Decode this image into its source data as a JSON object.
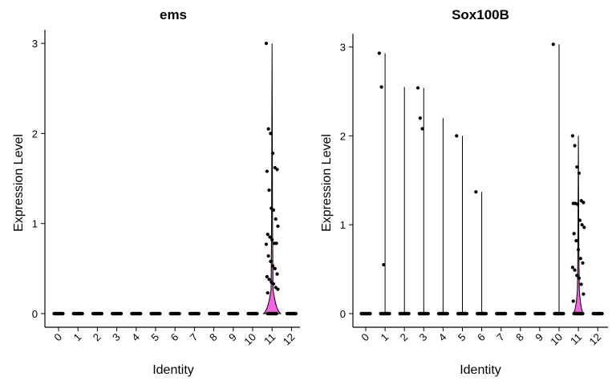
{
  "chart_data": [
    {
      "type": "violin",
      "title": "ems",
      "xlabel": "Identity",
      "ylabel": "Expression Level",
      "categories": [
        "0",
        "1",
        "2",
        "3",
        "4",
        "5",
        "6",
        "7",
        "8",
        "9",
        "10",
        "11",
        "12"
      ],
      "ylim": [
        0,
        3.15
      ],
      "yticks": [
        0,
        1,
        2,
        3
      ],
      "fill_color": "#F564E3",
      "violin_max": [
        0,
        0,
        0,
        0,
        0,
        0,
        0,
        0,
        0,
        0,
        0,
        3.0,
        0
      ],
      "violin_width_at_zero": [
        0,
        0,
        0,
        0,
        0,
        0,
        0,
        0,
        0,
        0,
        0,
        0.2,
        0
      ],
      "points": [
        {
          "cat": 11,
          "values": [
            3.0,
            2.05,
            2.0,
            1.78,
            1.62,
            1.6,
            1.58,
            1.37,
            1.17,
            1.15,
            1.05,
            0.97,
            0.88,
            0.85,
            0.82,
            0.78,
            0.78,
            0.77,
            0.64,
            0.58,
            0.53,
            0.5,
            0.44,
            0.41,
            0.38,
            0.35,
            0.33,
            0.29,
            0.27,
            0.23
          ]
        }
      ]
    },
    {
      "type": "violin",
      "title": "Sox100B",
      "xlabel": "Identity",
      "ylabel": "Expression Level",
      "categories": [
        "0",
        "1",
        "2",
        "3",
        "4",
        "5",
        "6",
        "7",
        "8",
        "9",
        "10",
        "11",
        "12"
      ],
      "ylim": [
        0,
        3.15
      ],
      "yticks": [
        0,
        1,
        2,
        3
      ],
      "fill_color": "#F564E3",
      "violin_max": [
        0,
        2.93,
        2.55,
        2.54,
        2.2,
        2.0,
        1.37,
        0,
        0,
        0,
        3.03,
        2.0,
        0
      ],
      "violin_width_at_zero": [
        0,
        0,
        0,
        0,
        0,
        0,
        0,
        0,
        0,
        0,
        0,
        0.12,
        0
      ],
      "points": [
        {
          "cat": 1,
          "values": [
            2.93,
            2.55,
            0.55
          ]
        },
        {
          "cat": 3,
          "values": [
            2.54,
            2.2,
            2.08
          ]
        },
        {
          "cat": 5,
          "values": [
            2.0
          ]
        },
        {
          "cat": 6,
          "values": [
            1.37
          ]
        },
        {
          "cat": 10,
          "values": [
            3.03
          ]
        },
        {
          "cat": 11,
          "values": [
            2.0,
            1.89,
            1.65,
            1.58,
            1.27,
            1.25,
            1.24,
            1.24,
            1.23,
            1.05,
            1.0,
            0.97,
            0.9,
            0.82,
            0.72,
            0.62,
            0.57,
            0.52,
            0.49,
            0.43,
            0.4,
            0.33,
            0.22,
            0.14
          ]
        }
      ]
    }
  ]
}
